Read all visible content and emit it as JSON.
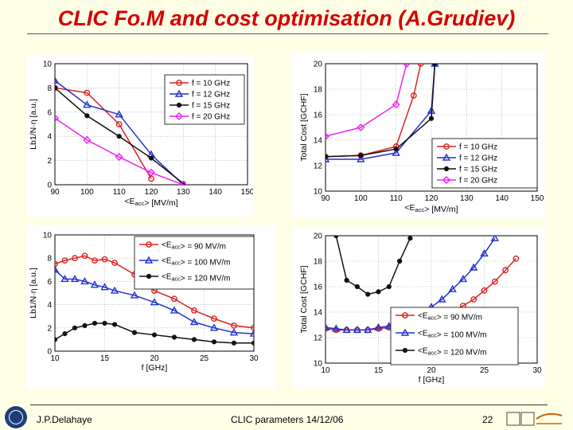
{
  "slide": {
    "title": "CLIC Fo.M and cost optimisation (A.Grudiev)",
    "footer_author": "J.P.Delahaye",
    "footer_center": "CLIC parameters 14/12/06",
    "page_number": "22"
  },
  "chart_data": [
    {
      "id": "fom-vs-eacc",
      "type": "line",
      "xlabel": "<Eacc> [MV/m]",
      "ylabel": "Lb1/N·η [a.u.]",
      "xlim": [
        90,
        150
      ],
      "ylim": [
        0,
        10
      ],
      "xticks": [
        "90",
        "100",
        "110",
        "120",
        "130",
        "140",
        "150"
      ],
      "yticks": [
        "0",
        "2",
        "4",
        "6",
        "8",
        "10"
      ],
      "legend_position": "top-right",
      "series": [
        {
          "name": "f = 10 GHz",
          "color": "#dd2222",
          "marker": "circle",
          "x": [
            90,
            100,
            110,
            120
          ],
          "y": [
            8.0,
            7.6,
            5.0,
            0.5
          ]
        },
        {
          "name": "f = 12 GHz",
          "color": "#2233cc",
          "marker": "triangle",
          "x": [
            90,
            100,
            110,
            120,
            130
          ],
          "y": [
            8.6,
            6.6,
            5.8,
            2.5,
            0.0
          ]
        },
        {
          "name": "f = 15 GHz",
          "color": "#111111",
          "marker": "star",
          "x": [
            90,
            100,
            110,
            120,
            130
          ],
          "y": [
            8.0,
            5.7,
            4.0,
            2.2,
            0.1
          ]
        },
        {
          "name": "f = 20 GHz",
          "color": "#ee22ee",
          "marker": "diamond",
          "x": [
            90,
            100,
            110,
            120,
            130
          ],
          "y": [
            5.5,
            3.7,
            2.3,
            1.0,
            0.0
          ]
        }
      ]
    },
    {
      "id": "cost-vs-eacc",
      "type": "line",
      "xlabel": "<Eacc> [MV/m]",
      "ylabel": "Total Cost [GCHF]",
      "xlim": [
        90,
        150
      ],
      "ylim": [
        10,
        20
      ],
      "xticks": [
        "90",
        "100",
        "110",
        "120",
        "130",
        "140",
        "150"
      ],
      "yticks": [
        "10",
        "12",
        "14",
        "16",
        "18",
        "20"
      ],
      "legend_position": "bottom-right",
      "series": [
        {
          "name": "f = 10 GHz",
          "color": "#dd2222",
          "marker": "circle",
          "x": [
            90,
            100,
            110,
            115,
            117
          ],
          "y": [
            12.7,
            12.8,
            13.5,
            17.5,
            20.0
          ]
        },
        {
          "name": "f = 12 GHz",
          "color": "#2233cc",
          "marker": "triangle",
          "x": [
            90,
            100,
            110,
            120,
            121
          ],
          "y": [
            12.5,
            12.5,
            13.0,
            16.3,
            20.0
          ]
        },
        {
          "name": "f = 15 GHz",
          "color": "#111111",
          "marker": "star",
          "x": [
            90,
            100,
            110,
            120,
            121
          ],
          "y": [
            12.7,
            12.8,
            13.3,
            15.7,
            20.0
          ]
        },
        {
          "name": "f = 20 GHz",
          "color": "#ee22ee",
          "marker": "diamond",
          "x": [
            90,
            100,
            110,
            113
          ],
          "y": [
            14.3,
            15.0,
            16.8,
            20.0
          ]
        }
      ]
    },
    {
      "id": "fom-vs-freq",
      "type": "line",
      "xlabel": "f [GHz]",
      "ylabel": "Lb1/N·η [a.u.]",
      "xlim": [
        10,
        30
      ],
      "ylim": [
        0,
        10
      ],
      "xticks": [
        "10",
        "15",
        "20",
        "25",
        "30"
      ],
      "yticks": [
        "0",
        "2",
        "4",
        "6",
        "8",
        "10"
      ],
      "legend_position": "top-right",
      "series": [
        {
          "name": "<Eacc> = 90 MV/m",
          "color": "#dd2222",
          "marker": "circle",
          "x": [
            10,
            11,
            12,
            13,
            14,
            15,
            16,
            18,
            20,
            22,
            24,
            26,
            28,
            30
          ],
          "y": [
            7.5,
            7.8,
            8.0,
            8.2,
            7.8,
            7.9,
            7.6,
            6.6,
            5.2,
            4.5,
            3.5,
            2.8,
            2.2,
            2.0
          ]
        },
        {
          "name": "<Eacc> = 100 MV/m",
          "color": "#2233cc",
          "marker": "triangle",
          "x": [
            10,
            11,
            12,
            13,
            14,
            15,
            16,
            18,
            20,
            22,
            24,
            26,
            28,
            30
          ],
          "y": [
            7.0,
            6.2,
            6.2,
            6.0,
            5.7,
            5.5,
            5.2,
            4.8,
            4.2,
            3.5,
            2.5,
            2.0,
            1.6,
            1.5
          ]
        },
        {
          "name": "<Eacc> = 120 MV/m",
          "color": "#111111",
          "marker": "star",
          "x": [
            10,
            11,
            12,
            13,
            14,
            15,
            16,
            18,
            20,
            22,
            24,
            26,
            28,
            30
          ],
          "y": [
            1.0,
            1.5,
            2.0,
            2.2,
            2.4,
            2.4,
            2.3,
            1.6,
            1.4,
            1.2,
            1.0,
            0.8,
            0.7,
            0.7
          ]
        }
      ]
    },
    {
      "id": "cost-vs-freq",
      "type": "line",
      "xlabel": "f [GHz]",
      "ylabel": "Total Cost [GCHF]",
      "xlim": [
        10,
        30
      ],
      "ylim": [
        10,
        20
      ],
      "xticks": [
        "10",
        "15",
        "20",
        "25",
        "30"
      ],
      "yticks": [
        "10",
        "12",
        "14",
        "16",
        "18",
        "20"
      ],
      "legend_position": "bottom-right",
      "series": [
        {
          "name": "<Eacc> = 90 MV/m",
          "color": "#dd2222",
          "marker": "circle",
          "x": [
            10,
            11,
            12,
            13,
            14,
            15,
            16,
            17,
            18,
            19,
            20,
            21,
            22,
            23,
            24,
            25,
            26,
            27,
            28
          ],
          "y": [
            12.7,
            12.6,
            12.6,
            12.6,
            12.6,
            12.7,
            12.8,
            12.9,
            13.0,
            13.1,
            13.3,
            13.6,
            14.0,
            14.5,
            15.0,
            15.7,
            16.4,
            17.3,
            18.2
          ]
        },
        {
          "name": "<Eacc> = 100 MV/m",
          "color": "#2233cc",
          "marker": "triangle",
          "x": [
            10,
            11,
            12,
            13,
            14,
            15,
            16,
            17,
            18,
            19,
            20,
            21,
            22,
            23,
            24,
            25,
            26
          ],
          "y": [
            12.8,
            12.7,
            12.6,
            12.6,
            12.6,
            12.8,
            12.9,
            13.1,
            13.4,
            13.8,
            14.4,
            15.0,
            15.8,
            16.6,
            17.5,
            18.6,
            19.8
          ]
        },
        {
          "name": "<Eacc> = 120 MV/m",
          "color": "#111111",
          "marker": "star",
          "x": [
            11,
            12,
            13,
            14,
            15,
            16,
            17,
            18
          ],
          "y": [
            20.0,
            16.5,
            16.0,
            15.4,
            15.6,
            16.0,
            18.0,
            19.8
          ]
        }
      ]
    }
  ]
}
